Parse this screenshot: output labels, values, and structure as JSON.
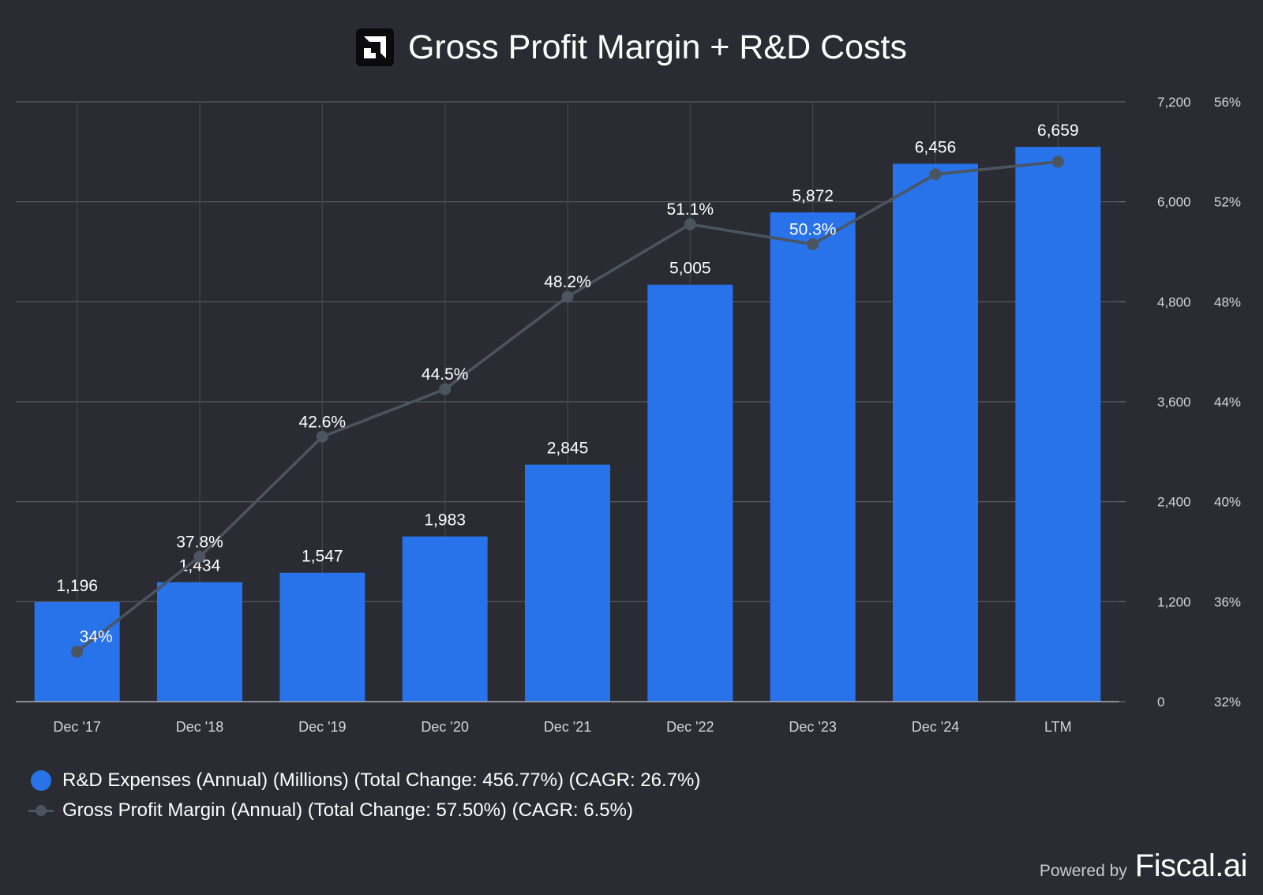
{
  "chart_data": {
    "type": "bar",
    "title": "Gross Profit Margin + R&D Costs",
    "categories": [
      "Dec '17",
      "Dec '18",
      "Dec '19",
      "Dec '20",
      "Dec '21",
      "Dec '22",
      "Dec '23",
      "Dec '24",
      "LTM"
    ],
    "series": [
      {
        "name": "R&D Expenses (Annual) (Millions) (Total Change: 456.77%) (CAGR: 26.7%)",
        "type": "bar",
        "axis": "left",
        "color": "#2872ea",
        "values": [
          1196,
          1434,
          1547,
          1983,
          2845,
          5005,
          5872,
          6456,
          6659
        ],
        "labels": [
          "1,196",
          "1,434",
          "1,547",
          "1,983",
          "2,845",
          "5,005",
          "5,872",
          "6,456",
          "6,659"
        ]
      },
      {
        "name": "Gross Profit Margin (Annual) (Total Change: 57.50%) (CAGR: 6.5%)",
        "type": "line",
        "axis": "right",
        "color": "#4a5560",
        "values": [
          34.0,
          37.8,
          42.6,
          44.5,
          48.2,
          51.1,
          50.3,
          53.1,
          53.6
        ],
        "labels": [
          "34%",
          "37.8%",
          "42.6%",
          "44.5%",
          "48.2%",
          "51.1%",
          "50.3%",
          "",
          ""
        ]
      }
    ],
    "y_left": {
      "min": 0,
      "max": 7200,
      "ticks": [
        "0",
        "1,200",
        "2,400",
        "3,600",
        "4,800",
        "6,000",
        "7,200"
      ]
    },
    "y_right": {
      "min": 32,
      "max": 56,
      "ticks": [
        "32%",
        "36%",
        "40%",
        "44%",
        "48%",
        "52%",
        "56%"
      ]
    },
    "grid": true,
    "legend_position": "bottom-left"
  },
  "footer": {
    "powered_by": "Powered by",
    "brand": "Fiscal.ai"
  }
}
